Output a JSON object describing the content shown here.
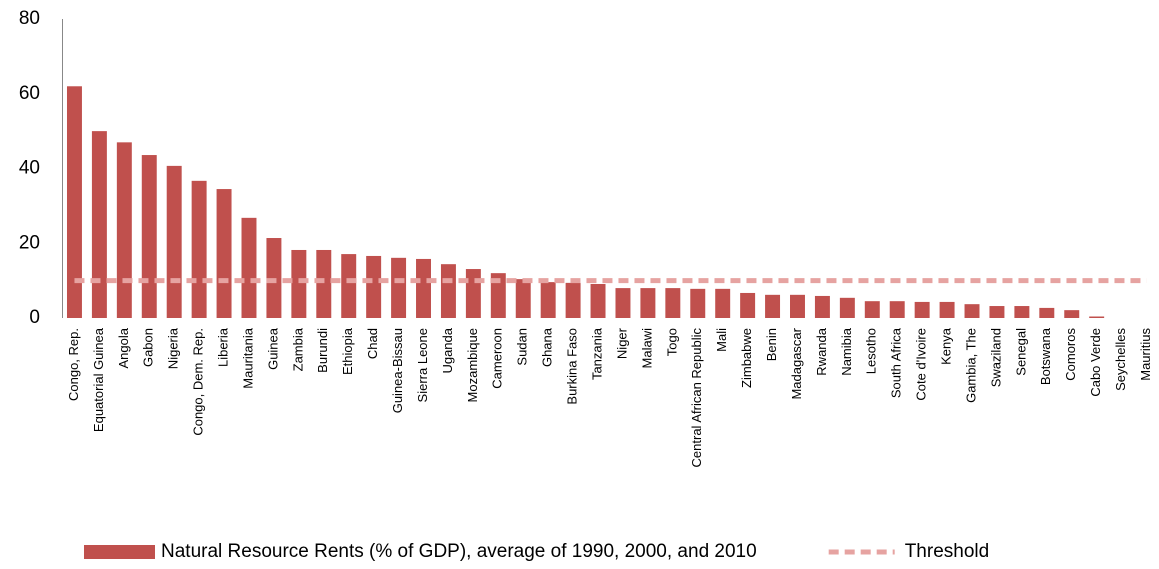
{
  "chart_data": {
    "type": "bar",
    "categories": [
      "Congo, Rep.",
      "Equatorial Guinea",
      "Angola",
      "Gabon",
      "Nigeria",
      "Congo, Dem. Rep.",
      "Liberia",
      "Mauritania",
      "Guinea",
      "Zambia",
      "Burundi",
      "Ethiopia",
      "Chad",
      "Guinea-Bissau",
      "Sierra Leone",
      "Uganda",
      "Mozambique",
      "Cameroon",
      "Sudan",
      "Ghana",
      "Burkina Faso",
      "Tanzania",
      "Niger",
      "Malawi",
      "Togo",
      "Central African Republic",
      "Mali",
      "Zimbabwe",
      "Benin",
      "Madagascar",
      "Rwanda",
      "Namibia",
      "Lesotho",
      "South Africa",
      "Cote d'Ivoire",
      "Kenya",
      "Gambia, The",
      "Swaziland",
      "Senegal",
      "Botswana",
      "Comoros",
      "Cabo Verde",
      "Seychelles",
      "Mauritius"
    ],
    "series": [
      {
        "name": "Natural Resource Rents (% of GDP), average of 1990, 2000, and 2010",
        "type": "bar",
        "color": "#c0504d",
        "values": [
          62,
          50,
          47,
          43.6,
          40.7,
          36.7,
          34.5,
          26.8,
          21.4,
          18.2,
          18.2,
          17.1,
          16.6,
          16.1,
          15.8,
          14.4,
          13.1,
          12,
          10.4,
          9.6,
          9.4,
          9.1,
          8,
          8,
          8,
          7.8,
          7.8,
          6.7,
          6.2,
          6.2,
          5.9,
          5.4,
          4.5,
          4.5,
          4.3,
          4.3,
          3.7,
          3.2,
          3.2,
          2.7,
          2.1,
          0.4,
          0,
          0
        ]
      },
      {
        "name": "Threshold",
        "type": "line",
        "color": "#e6a3a1",
        "dashed": true,
        "values": [
          10,
          10,
          10,
          10,
          10,
          10,
          10,
          10,
          10,
          10,
          10,
          10,
          10,
          10,
          10,
          10,
          10,
          10,
          10,
          10,
          10,
          10,
          10,
          10,
          10,
          10,
          10,
          10,
          10,
          10,
          10,
          10,
          10,
          10,
          10,
          10,
          10,
          10,
          10,
          10,
          10,
          10,
          10,
          10
        ]
      }
    ],
    "ylim": [
      0,
      80
    ],
    "yticks": [
      0,
      20,
      40,
      60,
      80
    ],
    "grid": false
  }
}
